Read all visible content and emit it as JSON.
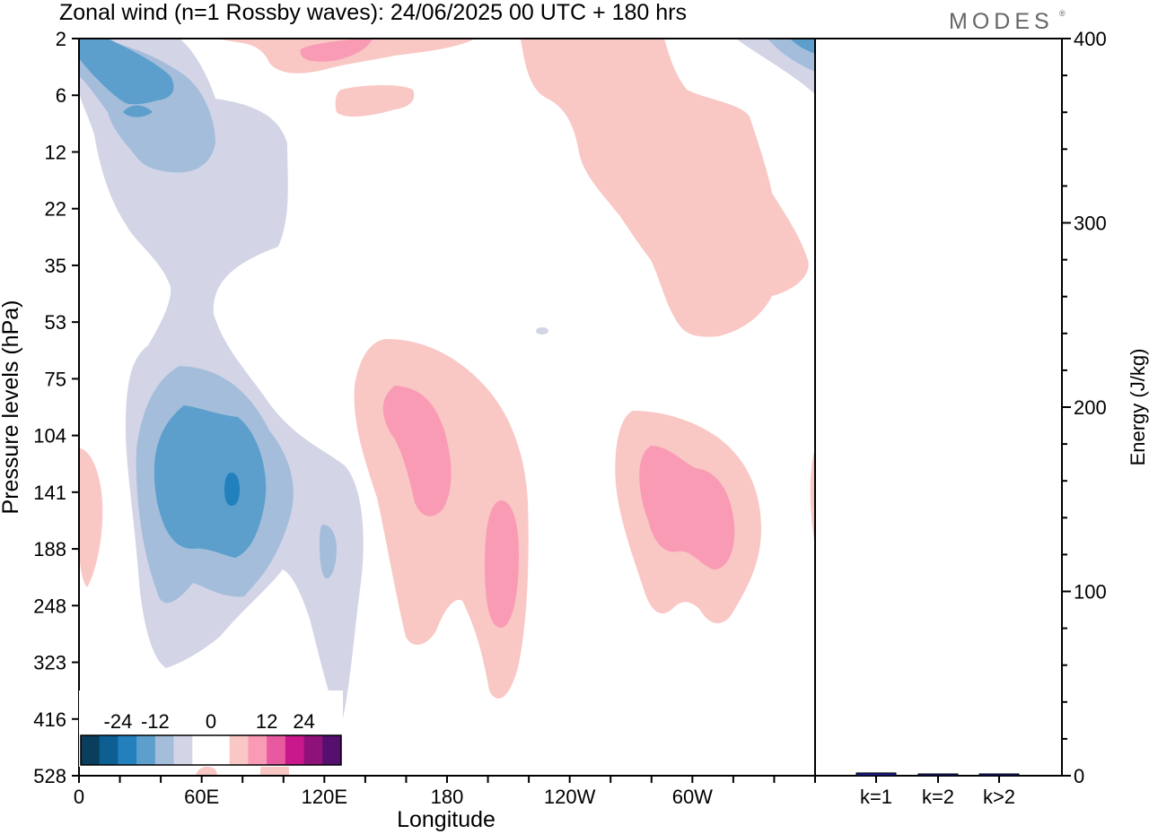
{
  "title": "Zonal wind (n=1 Rossby waves):  24/06/2025  00 UTC  + 180 hrs",
  "logo": "MODES",
  "chart_data": [
    {
      "type": "heatmap",
      "title": "Zonal wind (n=1 Rossby waves):  24/06/2025  00 UTC  + 180 hrs",
      "xlabel": "Longitude",
      "ylabel": "Pressure levels (hPa)",
      "x_ticks": [
        "0",
        "60E",
        "120E",
        "180",
        "120W",
        "60W"
      ],
      "y_ticks": [
        "2",
        "6",
        "12",
        "22",
        "35",
        "53",
        "75",
        "104",
        "141",
        "188",
        "248",
        "323",
        "416",
        "528"
      ],
      "y_scale": "log-like pressure levels, 2 at top, 528 at bottom",
      "colorbar": {
        "labels": [
          "-24",
          "-12",
          "0",
          "12",
          "24"
        ],
        "colors": [
          "#0b3d5c",
          "#0d5f92",
          "#2281bd",
          "#5c9fcc",
          "#a4bddb",
          "#d3d5e7",
          "#ffffff",
          "#ffffff",
          "#f9c7c4",
          "#f99bb4",
          "#e85aa0",
          "#c8188b",
          "#8f117a",
          "#550f6e"
        ]
      },
      "cells": [
        {
          "lon": 18,
          "level": 6,
          "value": -10
        },
        {
          "lon": 60,
          "level": 141,
          "value": -12
        },
        {
          "lon": 75,
          "level": 141,
          "value": -16
        },
        {
          "lon": 122,
          "level": 188,
          "value": -8
        },
        {
          "lon": 105,
          "level": 248,
          "value": -3
        },
        {
          "lon": 168,
          "level": 104,
          "value": 8
        },
        {
          "lon": 200,
          "level": 188,
          "value": 7
        },
        {
          "lon": 295,
          "level": 141,
          "value": 7
        },
        {
          "lon": 270,
          "level": 22,
          "value": 3
        },
        {
          "lon": 100,
          "level": 2,
          "value": 5
        }
      ]
    },
    {
      "type": "bar",
      "ylabel": "Energy (J/kg)",
      "categories": [
        "k=1",
        "k=2",
        "k>2"
      ],
      "values": [
        1.5,
        0.5,
        0.5
      ],
      "ylim": [
        0,
        400
      ],
      "y_ticks": [
        "0",
        "100",
        "200",
        "300",
        "400"
      ],
      "bar_color": "#1a1a8c"
    }
  ]
}
